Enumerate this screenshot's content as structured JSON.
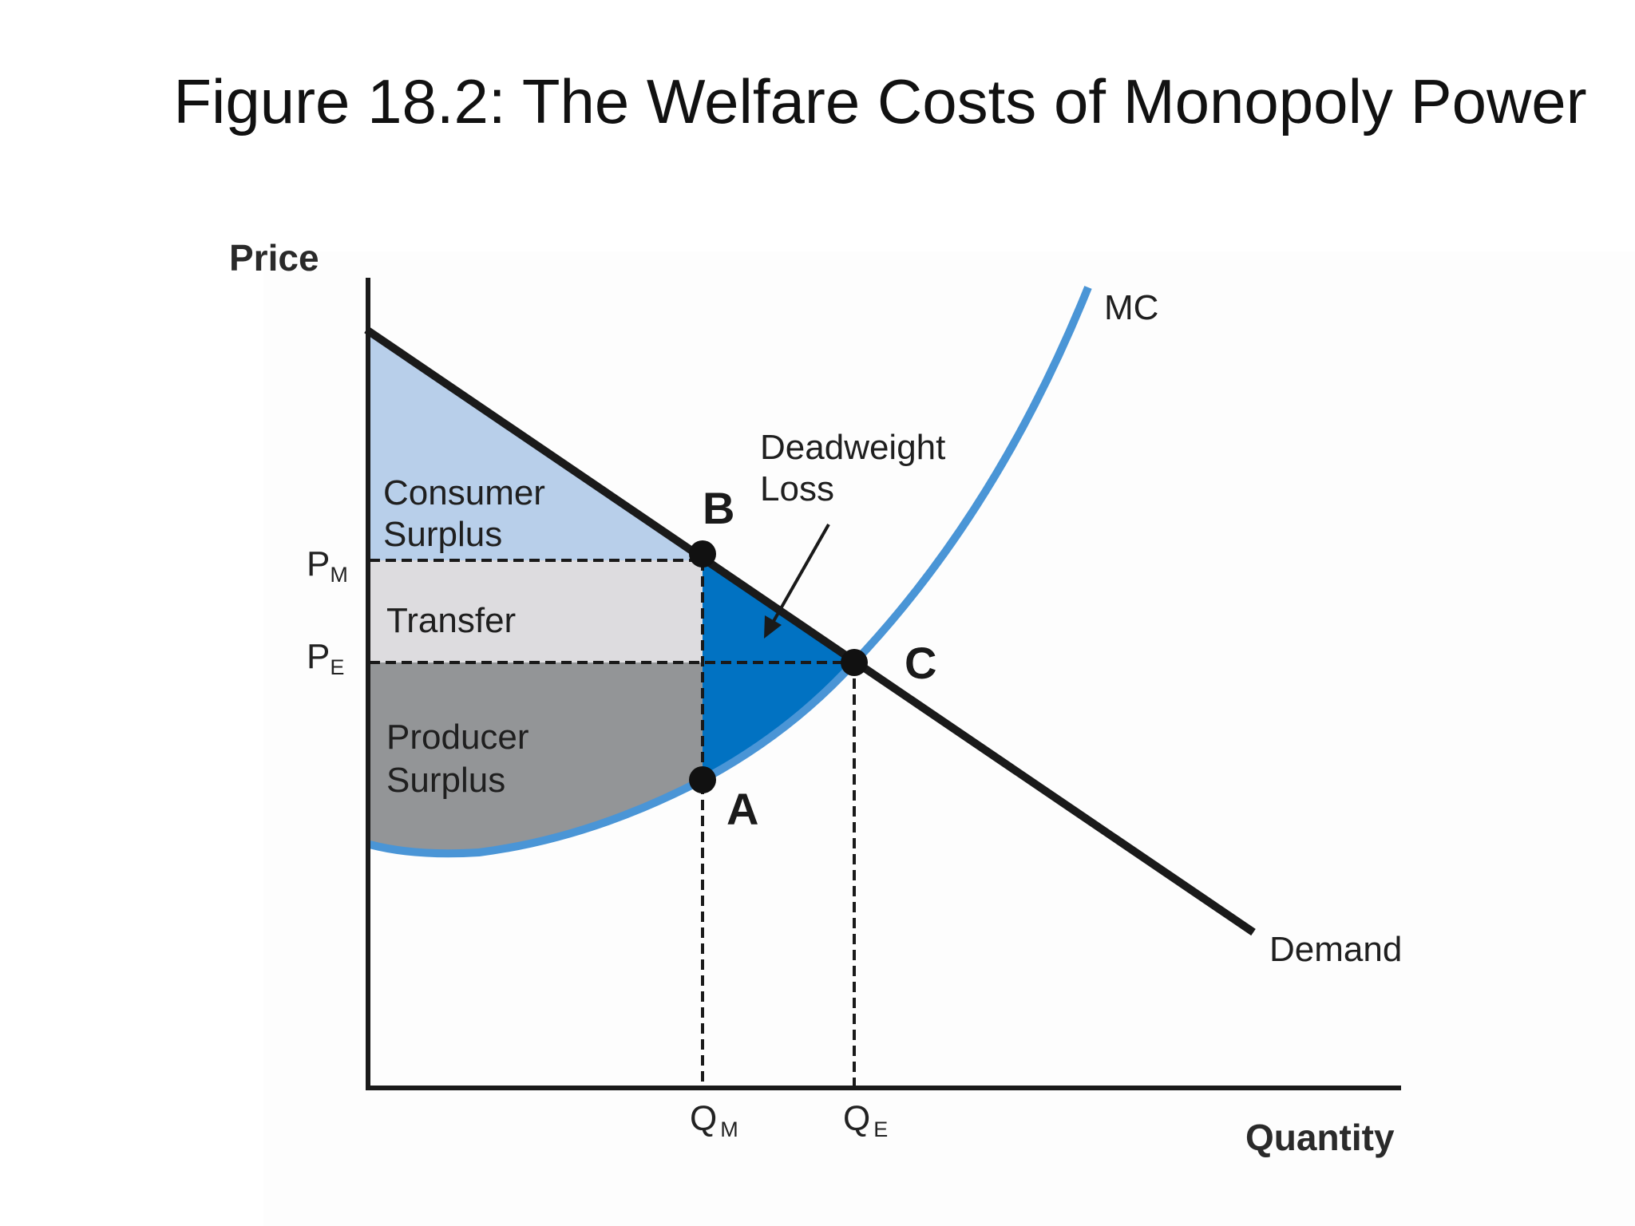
{
  "title": "Figure 18.2: The Welfare Costs of Monopoly Power",
  "axes": {
    "y_label": "Price",
    "x_label": "Quantity"
  },
  "ticks": {
    "pm": {
      "main": "P",
      "sub": "M"
    },
    "pe": {
      "main": "P",
      "sub": "E"
    },
    "qm": {
      "main": "Q",
      "sub": "M"
    },
    "qe": {
      "main": "Q",
      "sub": "E"
    }
  },
  "curves": {
    "mc": "MC",
    "demand": "Demand"
  },
  "points": {
    "a": "A",
    "b": "B",
    "c": "C"
  },
  "regions": {
    "consumer_surplus": [
      "Consumer",
      "Surplus"
    ],
    "transfer": "Transfer",
    "producer_surplus": [
      "Producer",
      "Surplus"
    ],
    "deadweight_loss": [
      "Deadweight",
      "Loss"
    ]
  },
  "colors": {
    "consumer_surplus": "#b8cfea",
    "transfer": "#dddcdf",
    "producer_surplus": "#939597",
    "deadweight_loss": "#0172c2",
    "mc_curve": "#4a95d6",
    "demand_curve": "#1a1a1a"
  }
}
